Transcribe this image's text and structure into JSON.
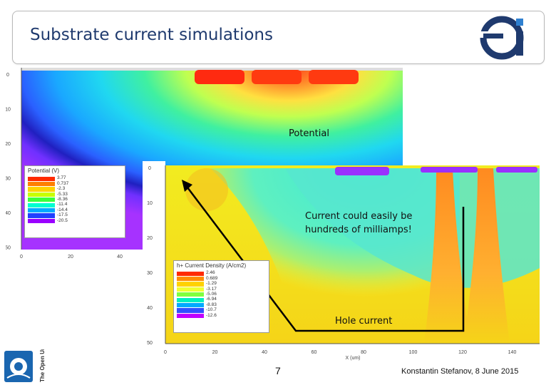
{
  "slide": {
    "title": "Substrate current simulations",
    "page_number": "7",
    "author_date": "Konstantin Stefanov, 8 June 2015"
  },
  "logos": {
    "ei_logo_text": "ei",
    "ou_logo_text": "The Open University"
  },
  "potential_plot": {
    "label": "Potential",
    "y_ticks": [
      "0",
      "10",
      "20",
      "30",
      "40",
      "50"
    ],
    "x_ticks": [
      "0",
      "20",
      "40"
    ],
    "legend_title": "Potential (V)",
    "legend_values": [
      "3.77",
      "0.737",
      "-2.3",
      "-5.33",
      "-8.36",
      "-11.4",
      "-14.4",
      "-17.5",
      "-20.5"
    ],
    "legend_colors": [
      "#ff2a00",
      "#ff7f00",
      "#ffd200",
      "#c8ff00",
      "#3cff3c",
      "#00ffd0",
      "#00aaff",
      "#2040ff",
      "#9a00ff"
    ]
  },
  "current_plot": {
    "annotation": "Current could easily be hundreds of milliamps!",
    "hole_current_label": "Hole current",
    "y_ticks": [
      "0",
      "10",
      "20",
      "30",
      "40",
      "50"
    ],
    "x_ticks": [
      "0",
      "20",
      "40",
      "60",
      "80",
      "100",
      "120",
      "140"
    ],
    "x_axis_label": "X (um)",
    "legend_title": "h+ Current Density (A/cm2)",
    "legend_values": [
      "2.46",
      "0.689",
      "-1.29",
      "-3.17",
      "-5.06",
      "-6.94",
      "-8.83",
      "-10.7",
      "-12.6"
    ],
    "legend_colors": [
      "#ff2a00",
      "#ff8c00",
      "#ffd200",
      "#f0ff30",
      "#80ff40",
      "#00f0c0",
      "#00aaff",
      "#3050ff",
      "#c000ff"
    ]
  }
}
